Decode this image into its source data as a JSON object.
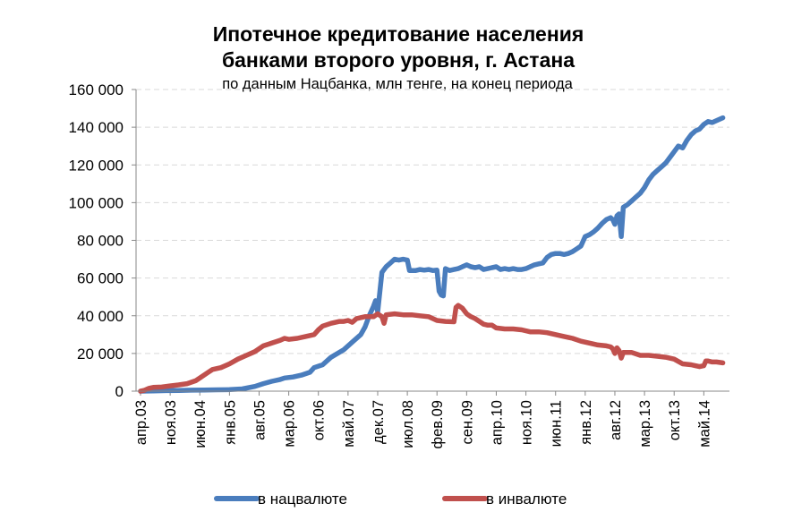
{
  "chart_data": {
    "type": "line",
    "title_lines": [
      "Ипотечное кредитование населения",
      "банками второго уровня, г. Астана"
    ],
    "subtitle": "по данным Нацбанка, млн  тенге, на конец периода",
    "xlabel": "",
    "ylabel": "",
    "ylim": [
      0,
      160000
    ],
    "yticks": [
      0,
      20000,
      40000,
      60000,
      80000,
      100000,
      120000,
      140000,
      160000
    ],
    "ytick_labels": [
      "0",
      "20 000",
      "40 000",
      "60 000",
      "80 000",
      "100 000",
      "120 000",
      "140 000",
      "160 000"
    ],
    "x_start": "2003-04",
    "x_end": "2014-05",
    "xtick_month_offsets": [
      0,
      7,
      14,
      21,
      28,
      35,
      42,
      49,
      56,
      63,
      70,
      77,
      84,
      91,
      98,
      105,
      112,
      119,
      126,
      133
    ],
    "xtick_labels": [
      "апр.03",
      "ноя.03",
      "июн.04",
      "янв.05",
      "авг.05",
      "мар.06",
      "окт.06",
      "май.07",
      "дек.07",
      "июл.08",
      "фев.09",
      "сен.09",
      "апр.10",
      "ноя.10",
      "июн.11",
      "янв.12",
      "авг.12",
      "мар.13",
      "окт.13",
      "май.14"
    ],
    "grid": "horizontal dashed",
    "legend_position": "bottom",
    "series": [
      {
        "name": "в нацвалюте",
        "color": "#4a7dbd",
        "points": [
          [
            0,
            0
          ],
          [
            3,
            100
          ],
          [
            6,
            300
          ],
          [
            9,
            400
          ],
          [
            12,
            500
          ],
          [
            15,
            600
          ],
          [
            18,
            700
          ],
          [
            21,
            800
          ],
          [
            24,
            1200
          ],
          [
            27,
            2500
          ],
          [
            29,
            4000
          ],
          [
            31,
            5200
          ],
          [
            33,
            6200
          ],
          [
            34,
            7000
          ],
          [
            36,
            7500
          ],
          [
            38,
            8500
          ],
          [
            40,
            10000
          ],
          [
            41,
            12500
          ],
          [
            43,
            14000
          ],
          [
            45,
            18000
          ],
          [
            48,
            22000
          ],
          [
            50,
            26000
          ],
          [
            52,
            30000
          ],
          [
            53,
            34000
          ],
          [
            54,
            40000
          ],
          [
            55,
            45000
          ],
          [
            55.5,
            48000
          ],
          [
            56,
            42000
          ],
          [
            57,
            63000
          ],
          [
            58,
            66000
          ],
          [
            59,
            68000
          ],
          [
            60,
            70000
          ],
          [
            61,
            69500
          ],
          [
            62,
            70000
          ],
          [
            63,
            69500
          ],
          [
            63.5,
            64000
          ],
          [
            65,
            64000
          ],
          [
            66,
            64500
          ],
          [
            67,
            64200
          ],
          [
            68,
            64500
          ],
          [
            69,
            64000
          ],
          [
            70,
            64200
          ],
          [
            70.5,
            53000
          ],
          [
            71,
            51000
          ],
          [
            71.5,
            50500
          ],
          [
            72,
            65000
          ],
          [
            73,
            64000
          ],
          [
            74,
            64500
          ],
          [
            75,
            65000
          ],
          [
            76,
            66000
          ],
          [
            77,
            67000
          ],
          [
            78,
            66000
          ],
          [
            79,
            65500
          ],
          [
            80,
            66000
          ],
          [
            81,
            64500
          ],
          [
            82,
            65000
          ],
          [
            83,
            65500
          ],
          [
            84,
            66000
          ],
          [
            85,
            64500
          ],
          [
            86,
            65000
          ],
          [
            87,
            64500
          ],
          [
            88,
            65000
          ],
          [
            89,
            64500
          ],
          [
            90,
            64500
          ],
          [
            91,
            65000
          ],
          [
            92,
            66000
          ],
          [
            93,
            67000
          ],
          [
            94,
            67500
          ],
          [
            95,
            68000
          ],
          [
            96,
            71000
          ],
          [
            97,
            72500
          ],
          [
            98,
            73000
          ],
          [
            99,
            73000
          ],
          [
            100,
            72500
          ],
          [
            101,
            73000
          ],
          [
            102,
            74000
          ],
          [
            103,
            75500
          ],
          [
            104,
            77000
          ],
          [
            105,
            82000
          ],
          [
            106,
            83000
          ],
          [
            107,
            84500
          ],
          [
            108,
            86500
          ],
          [
            109,
            89000
          ],
          [
            110,
            91000
          ],
          [
            111,
            92000
          ],
          [
            111.5,
            91000
          ],
          [
            112,
            88500
          ],
          [
            112.5,
            93000
          ],
          [
            113,
            94000
          ],
          [
            113.5,
            82000
          ],
          [
            114,
            97500
          ],
          [
            115,
            99000
          ],
          [
            116,
            101000
          ],
          [
            117,
            103000
          ],
          [
            118,
            105000
          ],
          [
            119,
            108000
          ],
          [
            120,
            112000
          ],
          [
            121,
            115000
          ],
          [
            122,
            117000
          ],
          [
            123,
            119000
          ],
          [
            124,
            121000
          ],
          [
            125,
            124000
          ],
          [
            126,
            127000
          ],
          [
            127,
            130000
          ],
          [
            127.5,
            129500
          ],
          [
            128,
            129000
          ],
          [
            129,
            133000
          ],
          [
            130,
            136000
          ],
          [
            131,
            138000
          ],
          [
            132,
            139000
          ],
          [
            133,
            141500
          ],
          [
            134,
            143000
          ],
          [
            135,
            142500
          ],
          [
            136,
            143500
          ],
          [
            137,
            144500
          ],
          [
            137.5,
            145000
          ]
        ]
      },
      {
        "name": "в инвалюте",
        "color": "#c0504d",
        "points": [
          [
            0,
            0
          ],
          [
            1,
            500
          ],
          [
            2,
            1500
          ],
          [
            3,
            2000
          ],
          [
            5,
            2200
          ],
          [
            7,
            2800
          ],
          [
            9,
            3300
          ],
          [
            11,
            4000
          ],
          [
            13,
            5500
          ],
          [
            14,
            7000
          ],
          [
            16,
            10000
          ],
          [
            17,
            11500
          ],
          [
            19,
            12500
          ],
          [
            21,
            14500
          ],
          [
            23,
            17000
          ],
          [
            25,
            19000
          ],
          [
            27,
            21000
          ],
          [
            29,
            24000
          ],
          [
            31,
            25500
          ],
          [
            33,
            27000
          ],
          [
            34,
            28000
          ],
          [
            35,
            27500
          ],
          [
            37,
            28000
          ],
          [
            39,
            29000
          ],
          [
            41,
            30000
          ],
          [
            42,
            32500
          ],
          [
            43,
            34500
          ],
          [
            45,
            36000
          ],
          [
            47,
            37000
          ],
          [
            48,
            37000
          ],
          [
            49,
            37500
          ],
          [
            50,
            36500
          ],
          [
            51,
            38500
          ],
          [
            53,
            39500
          ],
          [
            55,
            39500
          ],
          [
            56,
            41000
          ],
          [
            57,
            39500
          ],
          [
            57.5,
            36000
          ],
          [
            58,
            40500
          ],
          [
            60,
            41000
          ],
          [
            62,
            40500
          ],
          [
            64,
            40500
          ],
          [
            66,
            40000
          ],
          [
            68,
            39500
          ],
          [
            69,
            38500
          ],
          [
            70,
            37500
          ],
          [
            72,
            37000
          ],
          [
            74,
            36800
          ],
          [
            74.5,
            44500
          ],
          [
            75,
            45500
          ],
          [
            76,
            44000
          ],
          [
            77,
            41000
          ],
          [
            78,
            39500
          ],
          [
            79,
            38500
          ],
          [
            80,
            37000
          ],
          [
            81,
            35500
          ],
          [
            82,
            35000
          ],
          [
            83,
            35000
          ],
          [
            84,
            33500
          ],
          [
            86,
            33000
          ],
          [
            88,
            33000
          ],
          [
            90,
            32500
          ],
          [
            92,
            31500
          ],
          [
            94,
            31500
          ],
          [
            96,
            31000
          ],
          [
            98,
            30000
          ],
          [
            100,
            29000
          ],
          [
            102,
            28000
          ],
          [
            104,
            26500
          ],
          [
            106,
            25500
          ],
          [
            108,
            24500
          ],
          [
            110,
            24000
          ],
          [
            111,
            23500
          ],
          [
            111.5,
            22500
          ],
          [
            112,
            20000
          ],
          [
            112.5,
            23000
          ],
          [
            113,
            21500
          ],
          [
            113.5,
            17500
          ],
          [
            114,
            20500
          ],
          [
            116,
            20500
          ],
          [
            118,
            19000
          ],
          [
            120,
            19000
          ],
          [
            122,
            18500
          ],
          [
            124,
            18000
          ],
          [
            126,
            17000
          ],
          [
            128,
            14500
          ],
          [
            130,
            14000
          ],
          [
            131,
            13500
          ],
          [
            132,
            13000
          ],
          [
            133,
            13500
          ],
          [
            133.5,
            16000
          ],
          [
            134,
            16000
          ],
          [
            135,
            15500
          ],
          [
            136,
            15500
          ],
          [
            137.5,
            15000
          ]
        ]
      }
    ]
  }
}
